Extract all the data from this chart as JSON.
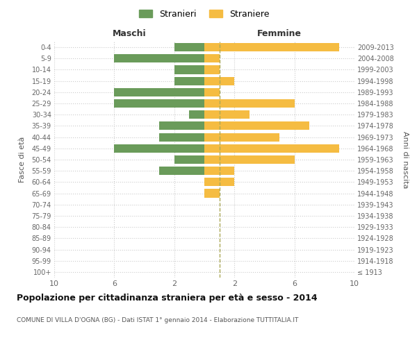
{
  "age_groups": [
    "100+",
    "95-99",
    "90-94",
    "85-89",
    "80-84",
    "75-79",
    "70-74",
    "65-69",
    "60-64",
    "55-59",
    "50-54",
    "45-49",
    "40-44",
    "35-39",
    "30-34",
    "25-29",
    "20-24",
    "15-19",
    "10-14",
    "5-9",
    "0-4"
  ],
  "birth_years": [
    "≤ 1913",
    "1914-1918",
    "1919-1923",
    "1924-1928",
    "1929-1933",
    "1934-1938",
    "1939-1943",
    "1944-1948",
    "1949-1953",
    "1954-1958",
    "1959-1963",
    "1964-1968",
    "1969-1973",
    "1974-1978",
    "1979-1983",
    "1984-1988",
    "1989-1993",
    "1994-1998",
    "1999-2003",
    "2004-2008",
    "2009-2013"
  ],
  "maschi": [
    0,
    0,
    0,
    0,
    0,
    0,
    0,
    0,
    0,
    3,
    2,
    6,
    3,
    3,
    1,
    6,
    6,
    2,
    2,
    6,
    2
  ],
  "femmine": [
    0,
    0,
    0,
    0,
    0,
    0,
    0,
    1,
    2,
    2,
    6,
    9,
    5,
    7,
    3,
    6,
    1,
    2,
    1,
    1,
    9
  ],
  "color_maschi": "#6a9b5a",
  "color_femmine": "#f5bc42",
  "title": "Popolazione per cittadinanza straniera per età e sesso - 2014",
  "subtitle": "COMUNE DI VILLA D'OGNA (BG) - Dati ISTAT 1° gennaio 2014 - Elaborazione TUTTITALIA.IT",
  "ylabel_left": "Fasce di età",
  "ylabel_right": "Anni di nascita",
  "xlabel_left": "Maschi",
  "xlabel_right": "Femmine",
  "legend_maschi": "Stranieri",
  "legend_femmine": "Straniere",
  "xlim": 10,
  "background_color": "#ffffff",
  "grid_color": "#cccccc",
  "dashed_line_color": "#aaa855"
}
